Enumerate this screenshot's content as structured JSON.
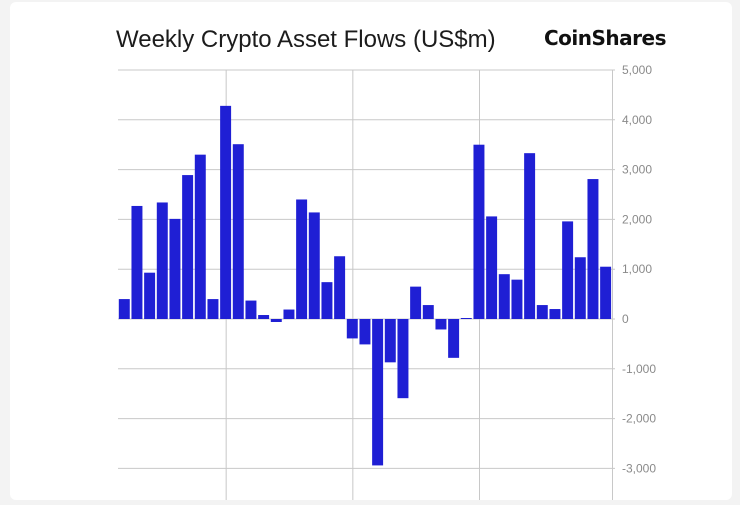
{
  "title": "Weekly Crypto Asset Flows (US$m)",
  "brand": "CoinShares",
  "colors": {
    "bar": "#1f1fd4",
    "grid": "#c8c8c8",
    "tick": "#8a8a8a"
  },
  "chart_data": {
    "type": "bar",
    "title": "Weekly Crypto Asset Flows (US$m)",
    "xlabel": "",
    "ylabel": "",
    "ylim": [
      -3500,
      5000
    ],
    "yticks": [
      5000,
      4000,
      3000,
      2000,
      1000,
      0,
      -1000,
      -2000,
      -3000
    ],
    "ytick_labels": [
      "5,000",
      "4,000",
      "3,000",
      "2,000",
      "1,000",
      "0",
      "-1,000",
      "-2,000",
      "-3,000"
    ],
    "values": [
      400,
      2270,
      930,
      2340,
      2010,
      2890,
      3300,
      400,
      4280,
      3510,
      370,
      80,
      -60,
      190,
      2400,
      2140,
      740,
      1260,
      -390,
      -510,
      -2940,
      -870,
      -1590,
      650,
      280,
      -210,
      -780,
      20,
      3500,
      2060,
      900,
      790,
      3330,
      280,
      200,
      1960,
      1240,
      2810,
      1050
    ],
    "grid": true,
    "vertical_gridlines_after_bar": [
      8,
      18,
      28
    ],
    "legend": "none"
  }
}
